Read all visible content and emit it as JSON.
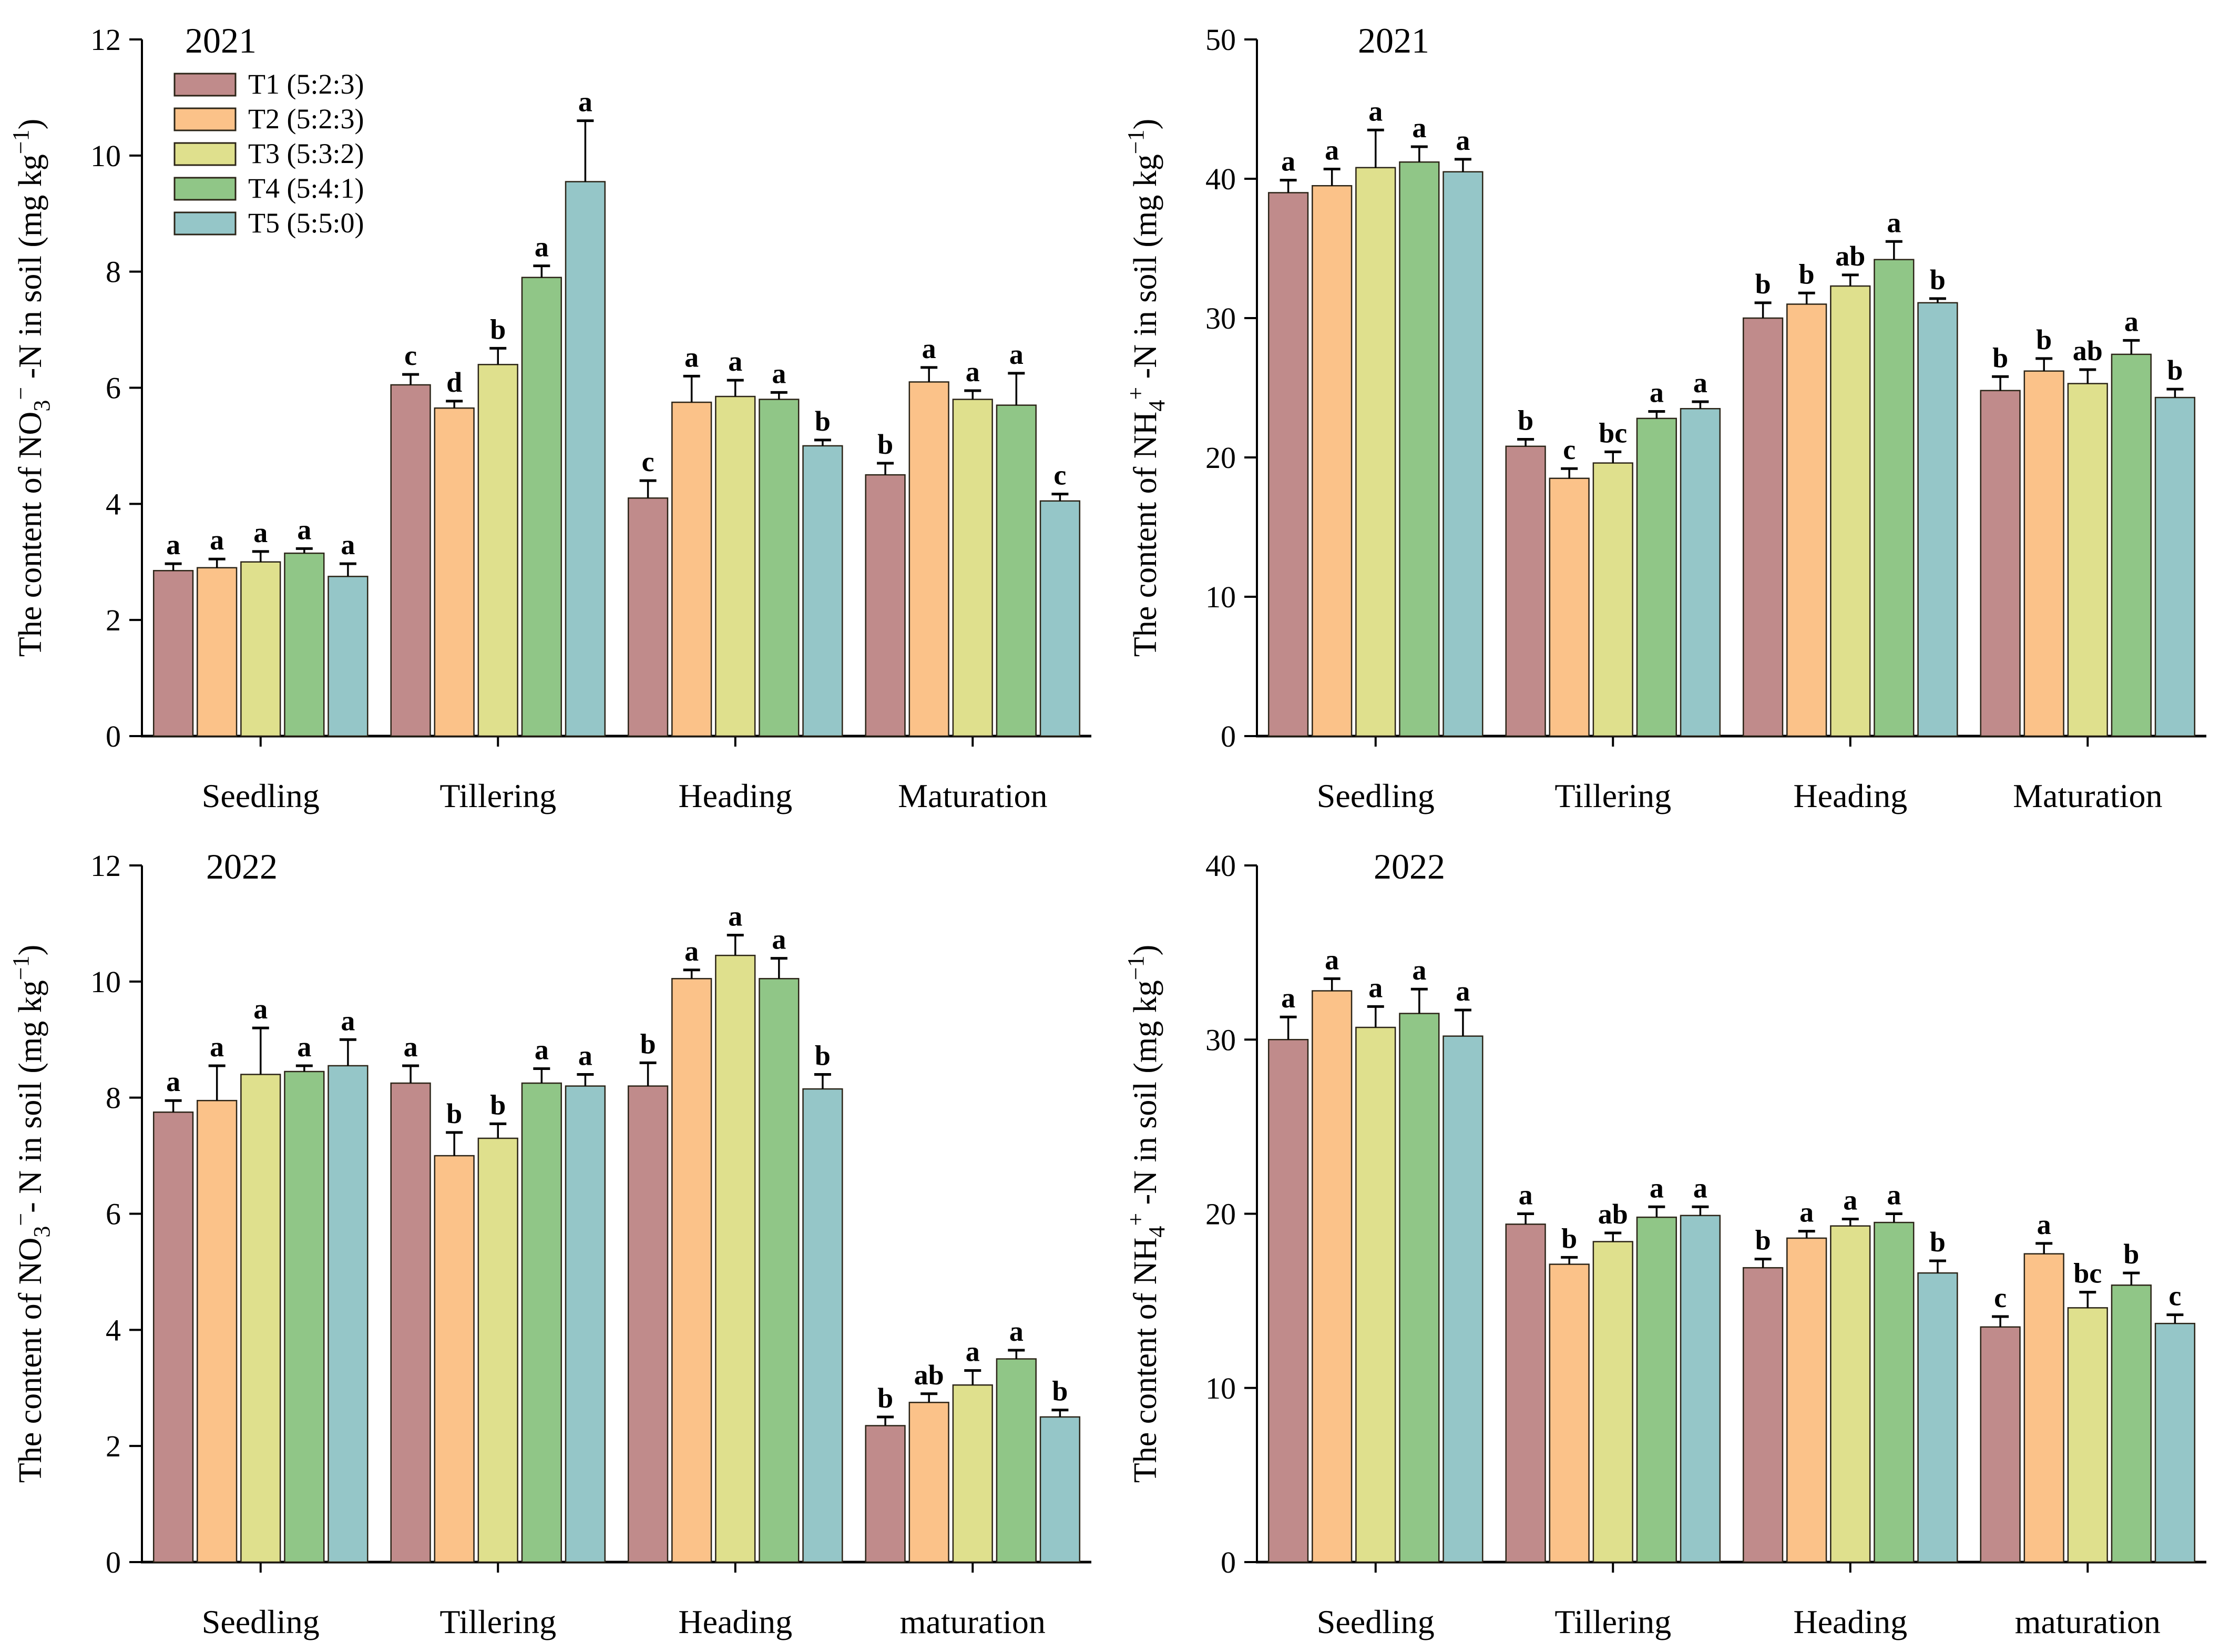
{
  "page": {
    "background": "#ffffff",
    "axis_color": "#000000",
    "bar_edge_color": "#2b2417"
  },
  "legend": {
    "entries": [
      {
        "label": "T1 (5:2:3)",
        "color": "#C08B8B"
      },
      {
        "label": "T2 (5:2:3)",
        "color": "#FBC289"
      },
      {
        "label": "T3 (5:3:2)",
        "color": "#DFE08D"
      },
      {
        "label": "T4 (5:4:1)",
        "color": "#90C687"
      },
      {
        "label": "T5 (5:5:0)",
        "color": "#95C6C8"
      }
    ]
  },
  "chart_data": [
    {
      "id": "no3-2021",
      "type": "bar",
      "year": "2021",
      "show_legend": true,
      "ylabel_segments": [
        {
          "t": "The content of NO"
        },
        {
          "t": "3",
          "pos": "sub"
        },
        {
          "t": "−",
          "pos": "sup"
        },
        {
          "t": " -N in soil (mg kg"
        },
        {
          "t": "−1",
          "pos": "sup"
        },
        {
          "t": ")"
        }
      ],
      "ylim": [
        0,
        12
      ],
      "yticks": [
        0,
        2,
        4,
        6,
        8,
        10,
        12
      ],
      "categories": [
        "Seedling",
        "Tillering",
        "Heading",
        "Maturation"
      ],
      "series": [
        {
          "values": [
            2.85,
            6.05,
            4.1,
            4.5
          ],
          "errors": [
            0.12,
            0.18,
            0.3,
            0.2
          ],
          "letters": [
            "a",
            "c",
            "c",
            "b"
          ]
        },
        {
          "values": [
            2.9,
            5.65,
            5.75,
            6.1
          ],
          "errors": [
            0.15,
            0.12,
            0.45,
            0.25
          ],
          "letters": [
            "a",
            "d",
            "a",
            "a"
          ]
        },
        {
          "values": [
            3.0,
            6.4,
            5.85,
            5.8
          ],
          "errors": [
            0.18,
            0.28,
            0.28,
            0.15
          ],
          "letters": [
            "a",
            "b",
            "a",
            "a"
          ]
        },
        {
          "values": [
            3.15,
            7.9,
            5.8,
            5.7
          ],
          "errors": [
            0.08,
            0.2,
            0.12,
            0.55
          ],
          "letters": [
            "a",
            "a",
            "a",
            "a"
          ]
        },
        {
          "values": [
            2.75,
            9.55,
            5.0,
            4.05
          ],
          "errors": [
            0.22,
            1.05,
            0.1,
            0.12
          ],
          "letters": [
            "a",
            "a",
            "b",
            "c"
          ]
        }
      ]
    },
    {
      "id": "nh4-2021",
      "type": "bar",
      "year": "2021",
      "show_legend": false,
      "ylabel_segments": [
        {
          "t": "The content of NH"
        },
        {
          "t": "4",
          "pos": "sub"
        },
        {
          "t": "+",
          "pos": "sup"
        },
        {
          "t": " -N in soil (mg kg"
        },
        {
          "t": "−1",
          "pos": "sup"
        },
        {
          "t": ")"
        }
      ],
      "ylim": [
        0,
        50
      ],
      "yticks": [
        0,
        10,
        20,
        30,
        40,
        50
      ],
      "categories": [
        "Seedling",
        "Tillering",
        "Heading",
        "Maturation"
      ],
      "series": [
        {
          "values": [
            39.0,
            20.8,
            30.0,
            24.8
          ],
          "errors": [
            0.9,
            0.5,
            1.1,
            1.0
          ],
          "letters": [
            "a",
            "b",
            "b",
            "b"
          ]
        },
        {
          "values": [
            39.5,
            18.5,
            31.0,
            26.2
          ],
          "errors": [
            1.2,
            0.7,
            0.8,
            0.9
          ],
          "letters": [
            "a",
            "c",
            "b",
            "b"
          ]
        },
        {
          "values": [
            40.8,
            19.6,
            32.3,
            25.3
          ],
          "errors": [
            2.7,
            0.8,
            0.8,
            1.0
          ],
          "letters": [
            "a",
            "bc",
            "ab",
            "ab"
          ]
        },
        {
          "values": [
            41.2,
            22.8,
            34.2,
            27.4
          ],
          "errors": [
            1.1,
            0.5,
            1.3,
            1.0
          ],
          "letters": [
            "a",
            "a",
            "a",
            "a"
          ]
        },
        {
          "values": [
            40.5,
            23.5,
            31.1,
            24.3
          ],
          "errors": [
            0.9,
            0.5,
            0.3,
            0.6
          ],
          "letters": [
            "a",
            "a",
            "b",
            "b"
          ]
        }
      ]
    },
    {
      "id": "no3-2022",
      "type": "bar",
      "year": "2022",
      "show_legend": false,
      "ylabel_segments": [
        {
          "t": "The content of NO"
        },
        {
          "t": "3",
          "pos": "sub"
        },
        {
          "t": "−",
          "pos": "sup"
        },
        {
          "t": "- N in soil (mg kg"
        },
        {
          "t": "−1",
          "pos": "sup"
        },
        {
          "t": ")"
        }
      ],
      "ylim": [
        0,
        12
      ],
      "yticks": [
        0,
        2,
        4,
        6,
        8,
        10,
        12
      ],
      "categories": [
        "Seedling",
        "Tillering",
        "Heading",
        "maturation"
      ],
      "series": [
        {
          "values": [
            7.75,
            8.25,
            8.2,
            2.35
          ],
          "errors": [
            0.2,
            0.3,
            0.4,
            0.15
          ],
          "letters": [
            "a",
            "a",
            "b",
            "b"
          ]
        },
        {
          "values": [
            7.95,
            7.0,
            10.05,
            2.75
          ],
          "errors": [
            0.6,
            0.4,
            0.15,
            0.15
          ],
          "letters": [
            "a",
            "b",
            "a",
            "ab"
          ]
        },
        {
          "values": [
            8.4,
            7.3,
            10.45,
            3.05
          ],
          "errors": [
            0.8,
            0.25,
            0.35,
            0.25
          ],
          "letters": [
            "a",
            "b",
            "a",
            "a"
          ]
        },
        {
          "values": [
            8.45,
            8.25,
            10.05,
            3.5
          ],
          "errors": [
            0.1,
            0.25,
            0.35,
            0.15
          ],
          "letters": [
            "a",
            "a",
            "a",
            "a"
          ]
        },
        {
          "values": [
            8.55,
            8.2,
            8.15,
            2.5
          ],
          "errors": [
            0.45,
            0.2,
            0.25,
            0.12
          ],
          "letters": [
            "a",
            "a",
            "b",
            "b"
          ]
        }
      ]
    },
    {
      "id": "nh4-2022",
      "type": "bar",
      "year": "2022",
      "show_legend": false,
      "ylabel_segments": [
        {
          "t": "The content of NH"
        },
        {
          "t": "4",
          "pos": "sub"
        },
        {
          "t": "+",
          "pos": "sup"
        },
        {
          "t": " -N in soil (mg kg"
        },
        {
          "t": "−1",
          "pos": "sup"
        },
        {
          "t": ")"
        }
      ],
      "ylim": [
        0,
        40
      ],
      "yticks": [
        0,
        10,
        20,
        30,
        40
      ],
      "categories": [
        "Seedling",
        "Tillering",
        "Heading",
        "maturation"
      ],
      "series": [
        {
          "values": [
            30.0,
            19.4,
            16.9,
            13.5
          ],
          "errors": [
            1.3,
            0.6,
            0.5,
            0.6
          ],
          "letters": [
            "a",
            "a",
            "b",
            "c"
          ]
        },
        {
          "values": [
            32.8,
            17.1,
            18.6,
            17.7
          ],
          "errors": [
            0.7,
            0.4,
            0.4,
            0.6
          ],
          "letters": [
            "a",
            "b",
            "a",
            "a"
          ]
        },
        {
          "values": [
            30.7,
            18.4,
            19.3,
            14.6
          ],
          "errors": [
            1.2,
            0.5,
            0.4,
            0.9
          ],
          "letters": [
            "a",
            "ab",
            "a",
            "bc"
          ]
        },
        {
          "values": [
            31.5,
            19.8,
            19.5,
            15.9
          ],
          "errors": [
            1.4,
            0.6,
            0.5,
            0.7
          ],
          "letters": [
            "a",
            "a",
            "a",
            "b"
          ]
        },
        {
          "values": [
            30.2,
            19.9,
            16.6,
            13.7
          ],
          "errors": [
            1.5,
            0.5,
            0.7,
            0.5
          ],
          "letters": [
            "a",
            "a",
            "b",
            "c"
          ]
        }
      ]
    }
  ]
}
